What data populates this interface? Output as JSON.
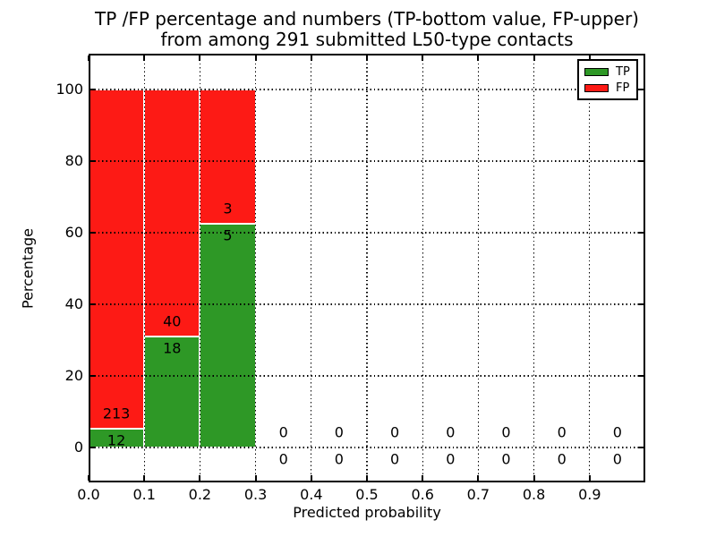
{
  "figure": {
    "title_line1": "TP /FP percentage and numbers (TP-bottom value, FP-upper)",
    "title_line2": "from among 291 submitted L50-type contacts",
    "xlabel": "Predicted probability",
    "ylabel": "Percentage",
    "background_color": "#ffffff",
    "grid_style": "dotted-black"
  },
  "legend": {
    "position": "upper-right",
    "items": [
      {
        "label": "TP",
        "color": "#2e9826"
      },
      {
        "label": "FP",
        "color": "#fd1a15"
      }
    ]
  },
  "chart_data": {
    "type": "bar",
    "stacked": true,
    "title": "TP /FP percentage and numbers (TP-bottom value, FP-upper)\nfrom among 291 submitted L50-type contacts",
    "xlabel": "Predicted probability",
    "ylabel": "Percentage",
    "total_contacts": 291,
    "xlim": [
      0.0,
      1.0
    ],
    "ylim": [
      -9.75,
      110.0
    ],
    "grid": true,
    "legend_position": "upper right",
    "bin_width": 0.1,
    "bin_starts": [
      0.0,
      0.1,
      0.2,
      0.3,
      0.4,
      0.5,
      0.6,
      0.7,
      0.8,
      0.9
    ],
    "xtick_labels": [
      "0.0",
      "0.1",
      "0.2",
      "0.3",
      "0.4",
      "0.5",
      "0.6",
      "0.7",
      "0.8",
      "0.9"
    ],
    "ytick_values": [
      0,
      20,
      40,
      60,
      80,
      100
    ],
    "ytick_labels": [
      "0",
      "20",
      "40",
      "60",
      "80",
      "100"
    ],
    "series": [
      {
        "name": "TP",
        "color": "#2e9826",
        "counts": [
          12,
          18,
          5,
          0,
          0,
          0,
          0,
          0,
          0,
          0
        ],
        "percentages": [
          5.333,
          31.034,
          62.5,
          0,
          0,
          0,
          0,
          0,
          0,
          0
        ],
        "count_labels": [
          "12",
          "18",
          "5",
          "0",
          "0",
          "0",
          "0",
          "0",
          "0",
          "0"
        ]
      },
      {
        "name": "FP",
        "color": "#fd1a15",
        "counts": [
          213,
          40,
          3,
          0,
          0,
          0,
          0,
          0,
          0,
          0
        ],
        "percentages": [
          94.667,
          68.966,
          37.5,
          0,
          0,
          0,
          0,
          0,
          0,
          0
        ],
        "count_labels": [
          "213",
          "40",
          "3",
          "0",
          "0",
          "0",
          "0",
          "0",
          "0",
          "0"
        ]
      }
    ]
  }
}
